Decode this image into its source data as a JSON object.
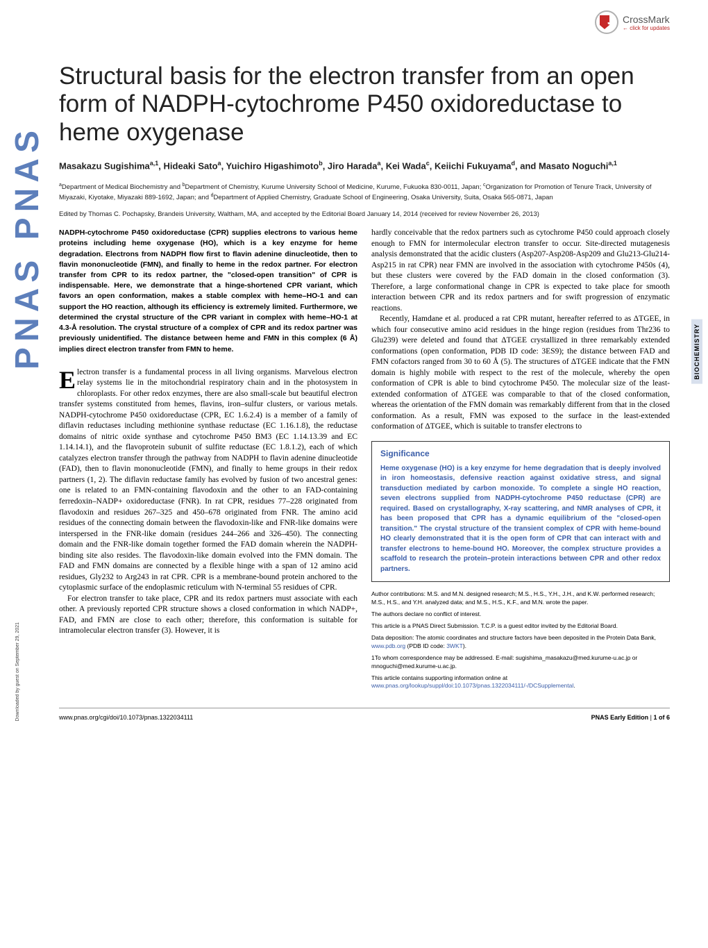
{
  "crossmark": {
    "label": "CrossMark",
    "sub": "← click for updates"
  },
  "title": "Structural basis for the electron transfer from an open form of NADPH-cytochrome P450 oxidoreductase to heme oxygenase",
  "authors": "Masakazu Sugishimaa,1, Hideaki Satoa, Yuichiro Higashimotob, Jiro Haradaa, Kei Wadac, Keiichi Fukuyamad, and Masato Noguchia,1",
  "affiliations": "aDepartment of Medical Biochemistry and bDepartment of Chemistry, Kurume University School of Medicine, Kurume, Fukuoka 830-0011, Japan; cOrganization for Promotion of Tenure Track, University of Miyazaki, Kiyotake, Miyazaki 889-1692, Japan; and dDepartment of Applied Chemistry, Graduate School of Engineering, Osaka University, Suita, Osaka 565-0871, Japan",
  "edited": "Edited by Thomas C. Pochapsky, Brandeis University, Waltham, MA, and accepted by the Editorial Board January 14, 2014 (received for review November 26, 2013)",
  "abstract": "NADPH-cytochrome P450 oxidoreductase (CPR) supplies electrons to various heme proteins including heme oxygenase (HO), which is a key enzyme for heme degradation. Electrons from NADPH flow first to flavin adenine dinucleotide, then to flavin mononucleotide (FMN), and finally to heme in the redox partner. For electron transfer from CPR to its redox partner, the \"closed-open transition\" of CPR is indispensable. Here, we demonstrate that a hinge-shortened CPR variant, which favors an open conformation, makes a stable complex with heme–HO-1 and can support the HO reaction, although its efficiency is extremely limited. Furthermore, we determined the crystal structure of the CPR variant in complex with heme–HO-1 at 4.3-Å resolution. The crystal structure of a complex of CPR and its redox partner was previously unidentified. The distance between heme and FMN in this complex (6 Å) implies direct electron transfer from FMN to heme.",
  "col1": {
    "p1a": "lectron transfer is a fundamental process in all living organisms. Marvelous electron relay systems lie in the mitochondrial respiratory chain and in the photosystem in chloroplasts. For other redox enzymes, there are also small-scale but beautiful electron transfer systems constituted from hemes, flavins, iron–sulfur clusters, or various metals. NADPH-cytochrome P450 oxidoreductase (CPR, EC 1.6.2.4) is a member of a family of diflavin reductases including methionine synthase reductase (EC 1.16.1.8), the reductase domains of nitric oxide synthase and cytochrome P450 BM3 (EC 1.14.13.39 and EC 1.14.14.1), and the flavoprotein subunit of sulfite reductase (EC 1.8.1.2), each of which catalyzes electron transfer through the pathway from NADPH to flavin adenine dinucleotide (FAD), then to flavin mononucleotide (FMN), and finally to heme groups in their redox partners (1, 2). The diflavin reductase family has evolved by fusion of two ancestral genes: one is related to an FMN-containing flavodoxin and the other to an FAD-containing ferredoxin–NADP+ oxidoreductase (FNR). In rat CPR, residues 77–228 originated from flavodoxin and residues 267–325 and 450–678 originated from FNR. The amino acid residues of the connecting domain between the flavodoxin-like and FNR-like domains were interspersed in the FNR-like domain (residues 244–266 and 326–450). The connecting domain and the FNR-like domain together formed the FAD domain wherein the NADPH-binding site also resides. The flavodoxin-like domain evolved into the FMN domain. The FAD and FMN domains are connected by a flexible hinge with a span of 12 amino acid residues, Gly232 to Arg243 in rat CPR. CPR is a membrane-bound protein anchored to the cytoplasmic surface of the endoplasmic reticulum with N-terminal 55 residues of CPR.",
    "p2": "For electron transfer to take place, CPR and its redox partners must associate with each other. A previously reported CPR structure shows a closed conformation in which NADP+, FAD, and FMN are close to each other; therefore, this conformation is suitable for intramolecular electron transfer (3). However, it is"
  },
  "col2": {
    "p1": "hardly conceivable that the redox partners such as cytochrome P450 could approach closely enough to FMN for intermolecular electron transfer to occur. Site-directed mutagenesis analysis demonstrated that the acidic clusters (Asp207-Asp208-Asp209 and Glu213-Glu214-Asp215 in rat CPR) near FMN are involved in the association with cytochrome P450s (4), but these clusters were covered by the FAD domain in the closed conformation (3). Therefore, a large conformational change in CPR is expected to take place for smooth interaction between CPR and its redox partners and for swift progression of enzymatic reactions.",
    "p2": "Recently, Hamdane et al. produced a rat CPR mutant, hereafter referred to as ΔTGEE, in which four consecutive amino acid residues in the hinge region (residues from Thr236 to Glu239) were deleted and found that ΔTGEE crystallized in three remarkably extended conformations (open conformation, PDB ID code: 3ES9); the distance between FAD and FMN cofactors ranged from 30 to 60 Å (5). The structures of ΔTGEE indicate that the FMN domain is highly mobile with respect to the rest of the molecule, whereby the open conformation of CPR is able to bind cytochrome P450. The molecular size of the least-extended conformation of ΔTGEE was comparable to that of the closed conformation, whereas the orientation of the FMN domain was remarkably different from that in the closed conformation. As a result, FMN was exposed to the surface in the least-extended conformation of ΔTGEE, which is suitable to transfer electrons to"
  },
  "significance": {
    "title": "Significance",
    "body": "Heme oxygenase (HO) is a key enzyme for heme degradation that is deeply involved in iron homeostasis, defensive reaction against oxidative stress, and signal transduction mediated by carbon monoxide. To complete a single HO reaction, seven electrons supplied from NADPH-cytochrome P450 reductase (CPR) are required. Based on crystallography, X-ray scattering, and NMR analyses of CPR, it has been proposed that CPR has a dynamic equilibrium of the \"closed-open transition.\" The crystal structure of the transient complex of CPR with heme-bound HO clearly demonstrated that it is the open form of CPR that can interact with and transfer electrons to heme-bound HO. Moreover, the complex structure provides a scaffold to research the protein–protein interactions between CPR and other redox partners."
  },
  "footnotes": {
    "contrib": "Author contributions: M.S. and M.N. designed research; M.S., H.S., Y.H., J.H., and K.W. performed research; M.S., H.S., and Y.H. analyzed data; and M.S., H.S., K.F., and M.N. wrote the paper.",
    "conflict": "The authors declare no conflict of interest.",
    "direct": "This article is a PNAS Direct Submission. T.C.P. is a guest editor invited by the Editorial Board.",
    "deposit": "Data deposition: The atomic coordinates and structure factors have been deposited in the Protein Data Bank, ",
    "deposit_link": "www.pdb.org",
    "deposit_tail": " (PDB ID code: ",
    "deposit_code": "3WKT",
    "deposit_end": ").",
    "corr": "1To whom correspondence may be addressed. E-mail: sugishima_masakazu@med.kurume-u.ac.jp or mnoguchi@med.kurume-u.ac.jp.",
    "supp": "This article contains supporting information online at ",
    "supp_link": "www.pnas.org/lookup/suppl/doi:10.1073/pnas.1322034111/-/DCSupplemental",
    "supp_end": "."
  },
  "footer": {
    "doi": "www.pnas.org/cgi/doi/10.1073/pnas.1322034111",
    "page": "PNAS Early Edition | 1 of 6"
  },
  "sidebar": "BIOCHEMISTRY",
  "download": "Downloaded by guest on September 29, 2021",
  "pnas": "PNAS PNAS"
}
